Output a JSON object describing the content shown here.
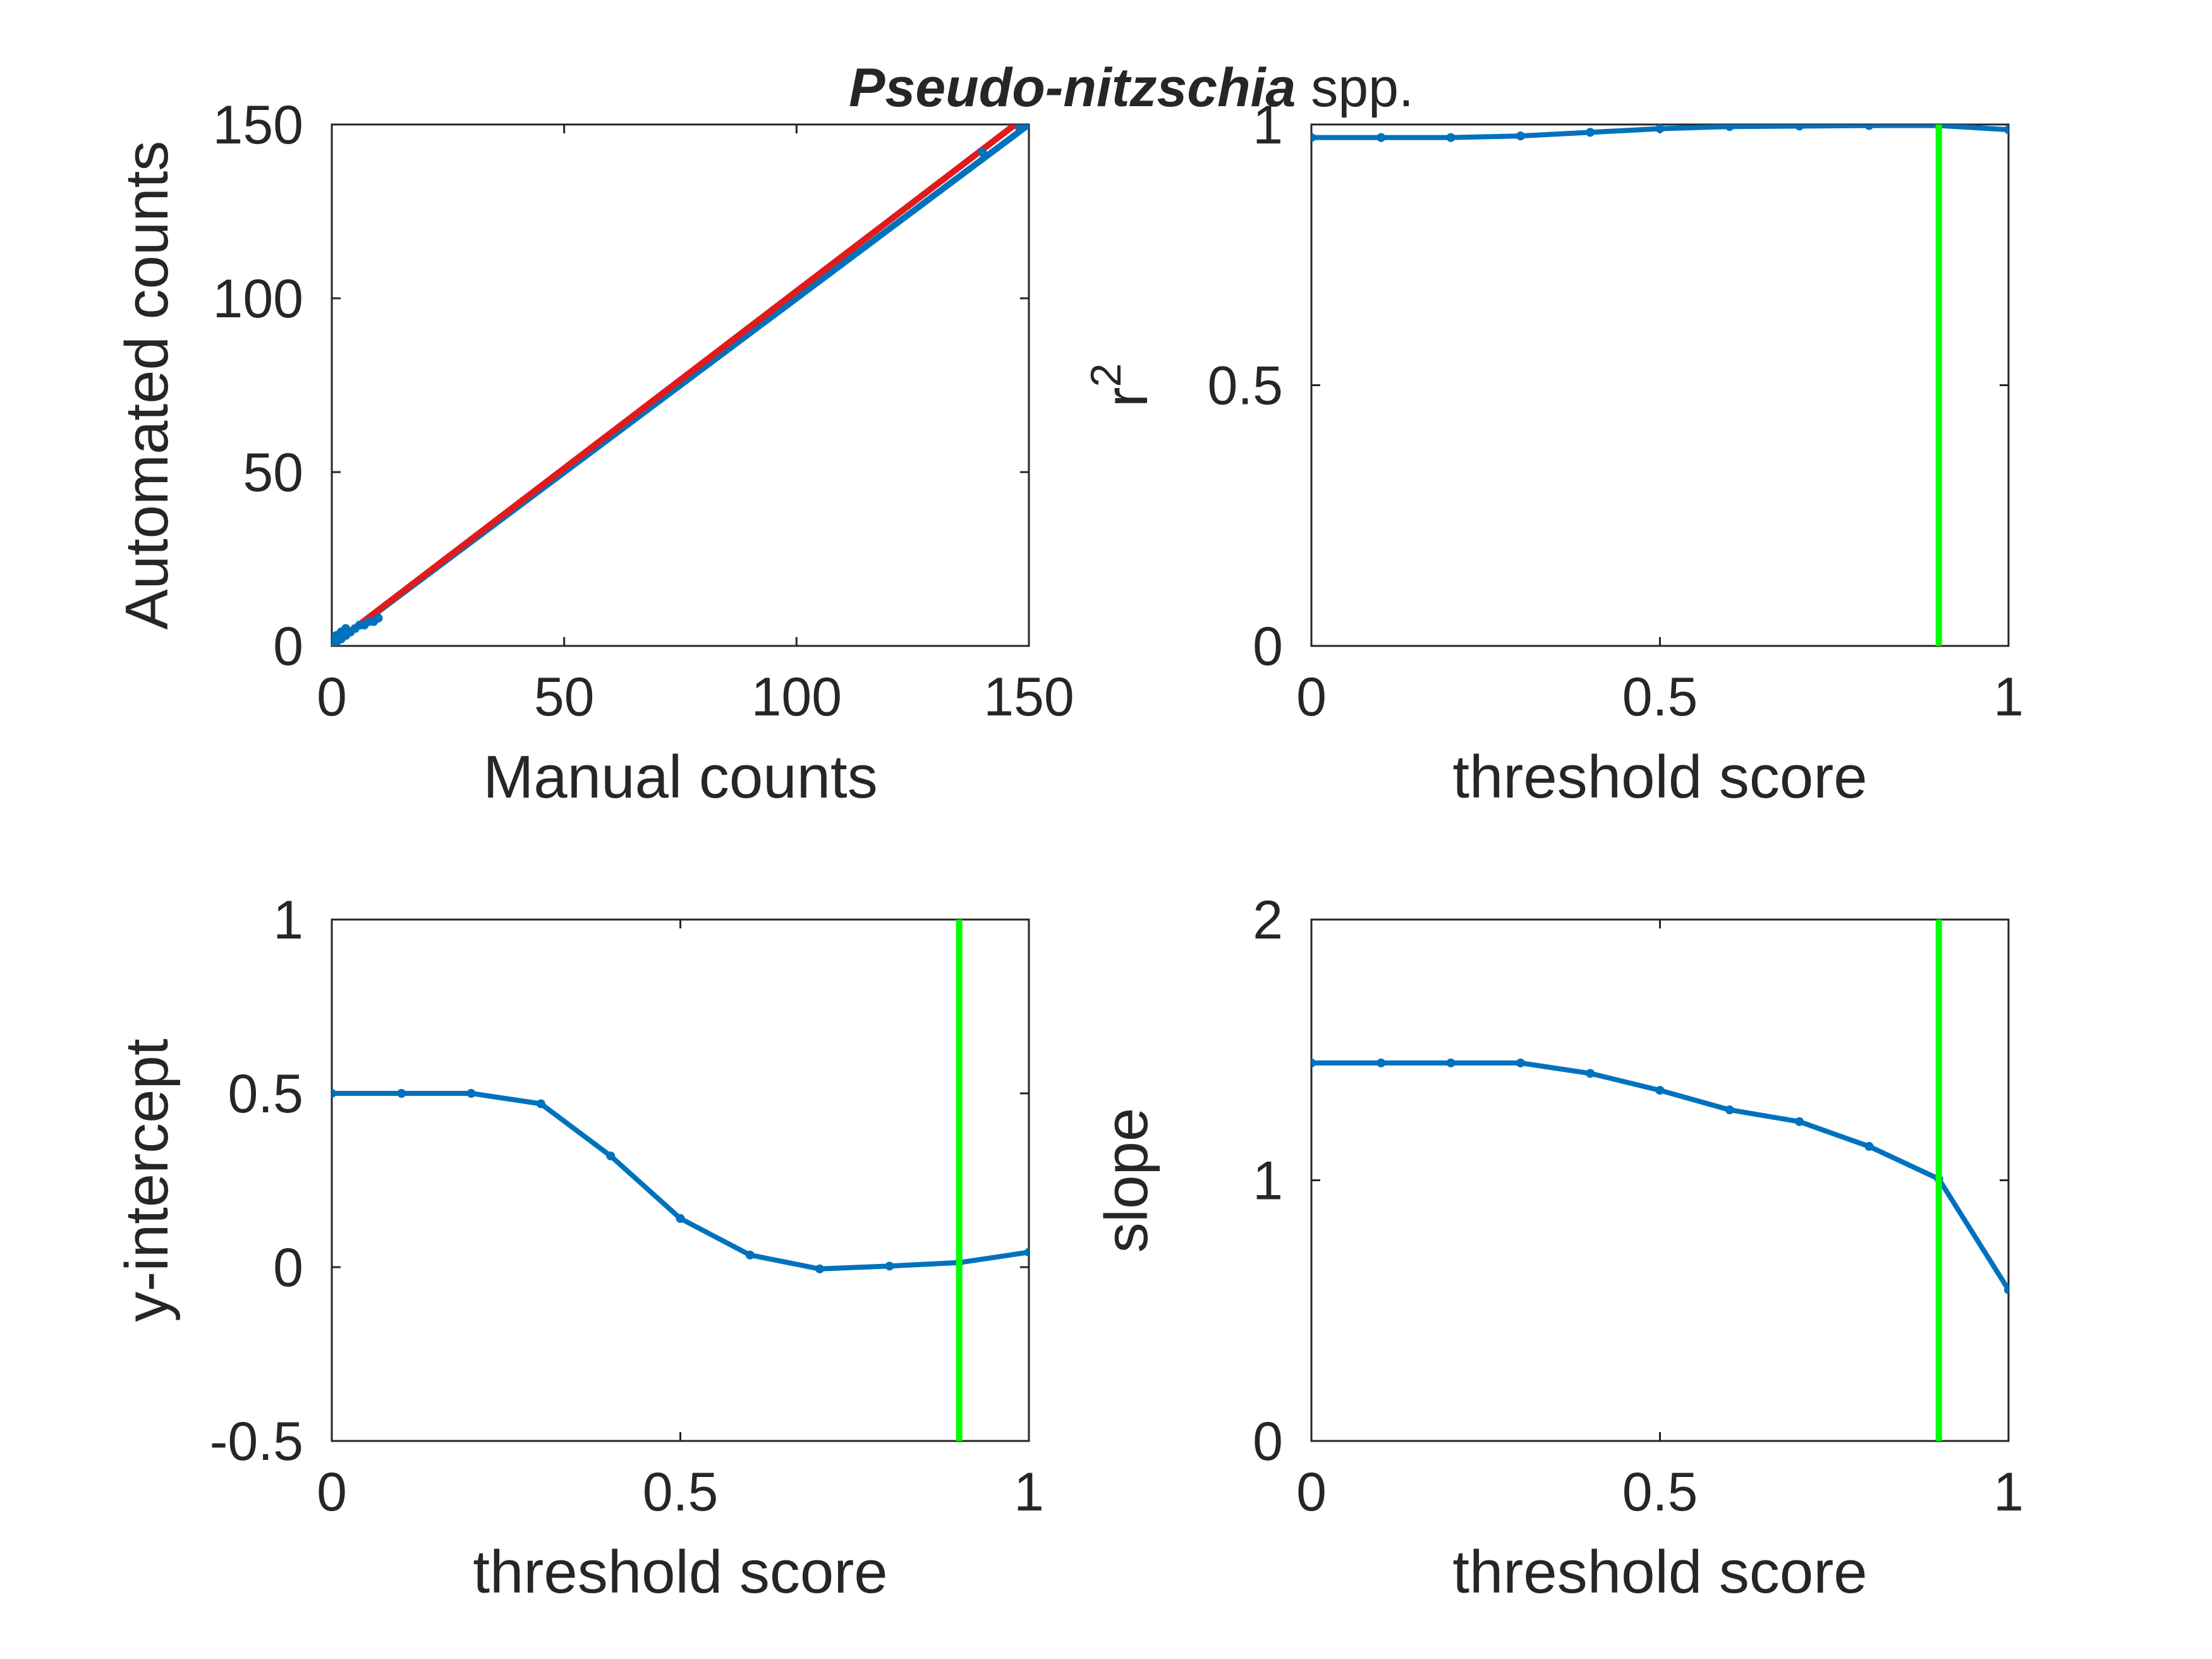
{
  "figure": {
    "title_italic": "Pseudo-nitzschia",
    "title_rest": " spp."
  },
  "chart_data": [
    {
      "type": "scatter",
      "xlabel": "Manual counts",
      "ylabel": "Automated counts",
      "xlim": [
        0,
        150
      ],
      "ylim": [
        0,
        150
      ],
      "xticks": [
        "0",
        "50",
        "100",
        "150"
      ],
      "yticks": [
        "0",
        "50",
        "100",
        "150"
      ],
      "grid": false,
      "points": {
        "x": [
          0,
          0,
          1,
          1,
          2,
          2,
          3,
          3,
          4,
          5,
          6,
          7,
          8,
          9,
          10,
          140,
          148
        ],
        "y": [
          1,
          2,
          1,
          3,
          2,
          4,
          3,
          5,
          4,
          5,
          6,
          6,
          7,
          7,
          8,
          142,
          149
        ],
        "color": "#0072bd"
      },
      "lines": [
        {
          "name": "",
          "color": "#0072bd",
          "x": [
            0,
            150
          ],
          "y": [
            0,
            150
          ]
        },
        {
          "name": "",
          "color": "#e31a1c",
          "x": [
            0,
            150
          ],
          "y": [
            0.1,
            153
          ]
        }
      ]
    },
    {
      "type": "line",
      "xlabel": "threshold score",
      "ylabel": "r",
      "ylabel_superscript": "2",
      "xlim": [
        0,
        1
      ],
      "ylim": [
        0,
        1
      ],
      "xticks": [
        "0",
        "0.5",
        "1"
      ],
      "yticks": [
        "0",
        "0.5",
        "1"
      ],
      "grid": false,
      "series": [
        {
          "color": "#0072bd",
          "x": [
            0,
            0.1,
            0.2,
            0.3,
            0.4,
            0.5,
            0.6,
            0.7,
            0.8,
            0.9,
            1.0
          ],
          "y": [
            0.975,
            0.975,
            0.975,
            0.978,
            0.985,
            0.992,
            0.996,
            0.997,
            0.998,
            0.998,
            0.99
          ]
        }
      ],
      "vline": {
        "x": 0.9,
        "color": "#00ff00"
      }
    },
    {
      "type": "line",
      "xlabel": "threshold score",
      "ylabel": "y-intercept",
      "xlim": [
        0,
        1
      ],
      "ylim": [
        -0.5,
        1
      ],
      "xticks": [
        "0",
        "0.5",
        "1"
      ],
      "yticks": [
        "-0.5",
        "0",
        "0.5",
        "1"
      ],
      "grid": false,
      "series": [
        {
          "color": "#0072bd",
          "x": [
            0,
            0.1,
            0.2,
            0.3,
            0.4,
            0.5,
            0.6,
            0.7,
            0.8,
            0.9,
            1.0
          ],
          "y": [
            0.5,
            0.5,
            0.5,
            0.47,
            0.32,
            0.14,
            0.035,
            -0.005,
            0.003,
            0.013,
            0.043
          ]
        }
      ],
      "vline": {
        "x": 0.9,
        "color": "#00ff00"
      }
    },
    {
      "type": "line",
      "xlabel": "threshold score",
      "ylabel": "slope",
      "xlim": [
        0,
        1
      ],
      "ylim": [
        0,
        2
      ],
      "xticks": [
        "0",
        "0.5",
        "1"
      ],
      "yticks": [
        "0",
        "1",
        "2"
      ],
      "grid": false,
      "series": [
        {
          "color": "#0072bd",
          "x": [
            0,
            0.1,
            0.2,
            0.3,
            0.4,
            0.5,
            0.6,
            0.7,
            0.8,
            0.9,
            1.0
          ],
          "y": [
            1.45,
            1.45,
            1.45,
            1.45,
            1.41,
            1.345,
            1.27,
            1.225,
            1.13,
            1.005,
            0.58
          ]
        }
      ],
      "vline": {
        "x": 0.9,
        "color": "#00ff00"
      }
    }
  ]
}
